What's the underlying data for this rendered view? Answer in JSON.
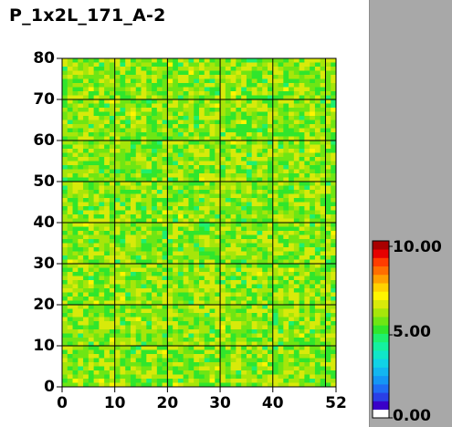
{
  "title": "P_1x2L_171_A-2",
  "colorbar": {
    "labels": [
      "10.00",
      "5.00",
      "0.00"
    ],
    "min": 0,
    "max": 10,
    "bands": [
      "#ffffff",
      "#3a00c8",
      "#2a3fe6",
      "#1f6cf5",
      "#1496f5",
      "#12b6f0",
      "#10d2e6",
      "#10e6c8",
      "#14f0a0",
      "#1ef06e",
      "#30e62c",
      "#6ee614",
      "#a6e60a",
      "#d8ea0a",
      "#fff500",
      "#ffd200",
      "#ffa000",
      "#ff6e00",
      "#ff3c00",
      "#e60000",
      "#a80000"
    ]
  },
  "chart_data": {
    "type": "heatmap",
    "title": "P_1x2L_171_A-2",
    "x_ticks": [
      "0",
      "10",
      "20",
      "30",
      "40",
      "52"
    ],
    "y_ticks": [
      "80",
      "70",
      "60",
      "50",
      "40",
      "30",
      "20",
      "10",
      "0"
    ],
    "xlim": [
      0,
      52
    ],
    "ylim": [
      0,
      80
    ],
    "value_range": [
      0,
      10
    ],
    "typical_value": 5.5,
    "grid": true
  }
}
